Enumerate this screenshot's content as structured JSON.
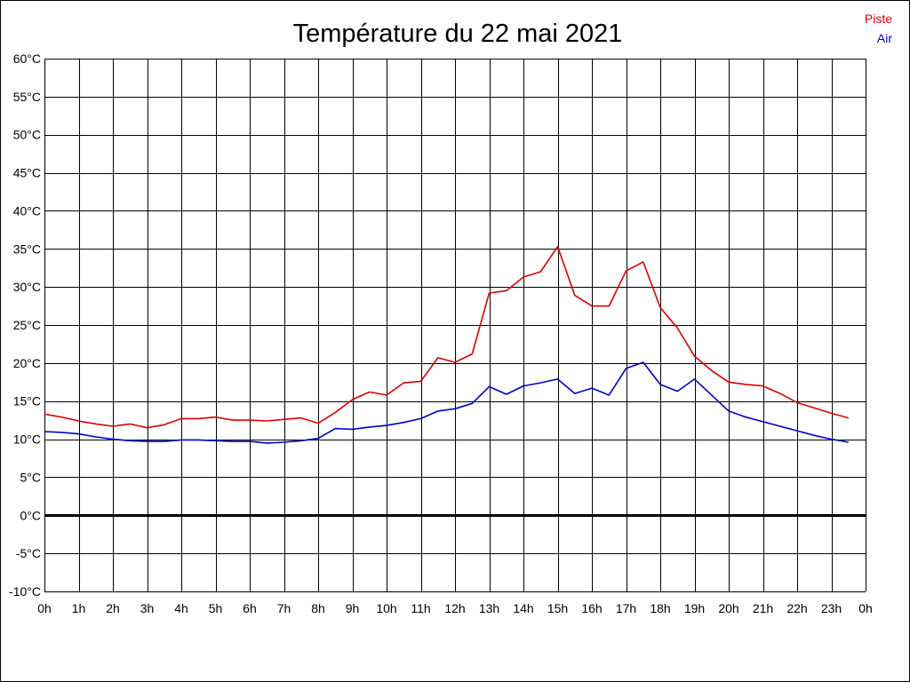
{
  "chart_data": {
    "type": "line",
    "title": "Température du 22 mai 2021",
    "xlabel": "",
    "ylabel": "",
    "x_tick_labels": [
      "0h",
      "1h",
      "2h",
      "3h",
      "4h",
      "5h",
      "6h",
      "7h",
      "8h",
      "9h",
      "10h",
      "11h",
      "12h",
      "13h",
      "14h",
      "15h",
      "16h",
      "17h",
      "18h",
      "19h",
      "20h",
      "21h",
      "22h",
      "23h",
      "0h"
    ],
    "y_tick_labels": [
      "60°C",
      "55°C",
      "50°C",
      "45°C",
      "40°C",
      "35°C",
      "30°C",
      "25°C",
      "20°C",
      "15°C",
      "10°C",
      "5°C",
      "0°C",
      "-5°C",
      "-10°C"
    ],
    "xlim": [
      0,
      24
    ],
    "ylim": [
      -10,
      60
    ],
    "grid": true,
    "legend_position": "top-right",
    "zero_line": true,
    "x": [
      0,
      0.5,
      1,
      1.5,
      2,
      2.5,
      3,
      3.5,
      4,
      4.5,
      5,
      5.5,
      6,
      6.5,
      7,
      7.5,
      8,
      8.5,
      9,
      9.5,
      10,
      10.5,
      11,
      11.5,
      12,
      12.5,
      13,
      13.5,
      14,
      14.5,
      15,
      15.5,
      16,
      16.5,
      17,
      17.5,
      18,
      18.5,
      19,
      19.5,
      20,
      20.5,
      21,
      21.5,
      22,
      22.5,
      23,
      23.5
    ],
    "series": [
      {
        "name": "Piste",
        "color": "#dd0000",
        "values": [
          13.3,
          12.9,
          12.4,
          12.0,
          11.7,
          12.0,
          11.5,
          11.9,
          12.7,
          12.7,
          12.9,
          12.5,
          12.5,
          12.4,
          12.6,
          12.8,
          12.1,
          13.5,
          15.2,
          16.2,
          15.8,
          17.4,
          17.6,
          20.7,
          20.1,
          21.2,
          29.2,
          29.5,
          31.3,
          32.0,
          35.3,
          28.9,
          27.5,
          27.5,
          32.1,
          33.3,
          27.3,
          24.6,
          20.9,
          19.0,
          17.5,
          17.2,
          17.0,
          16.0,
          14.8,
          14.1,
          13.4,
          12.8
        ]
      },
      {
        "name": "Air",
        "color": "#0000cc",
        "values": [
          11.0,
          10.9,
          10.7,
          10.3,
          10.0,
          9.8,
          9.7,
          9.7,
          9.9,
          9.9,
          9.8,
          9.7,
          9.7,
          9.5,
          9.6,
          9.8,
          10.1,
          11.4,
          11.3,
          11.6,
          11.8,
          12.2,
          12.7,
          13.7,
          14.0,
          14.7,
          16.9,
          15.9,
          17.0,
          17.4,
          17.9,
          16.0,
          16.7,
          15.8,
          19.3,
          20.1,
          17.2,
          16.3,
          17.9,
          15.8,
          13.7,
          12.9,
          12.3,
          11.7,
          11.1,
          10.5,
          10.0,
          9.6
        ]
      }
    ]
  }
}
